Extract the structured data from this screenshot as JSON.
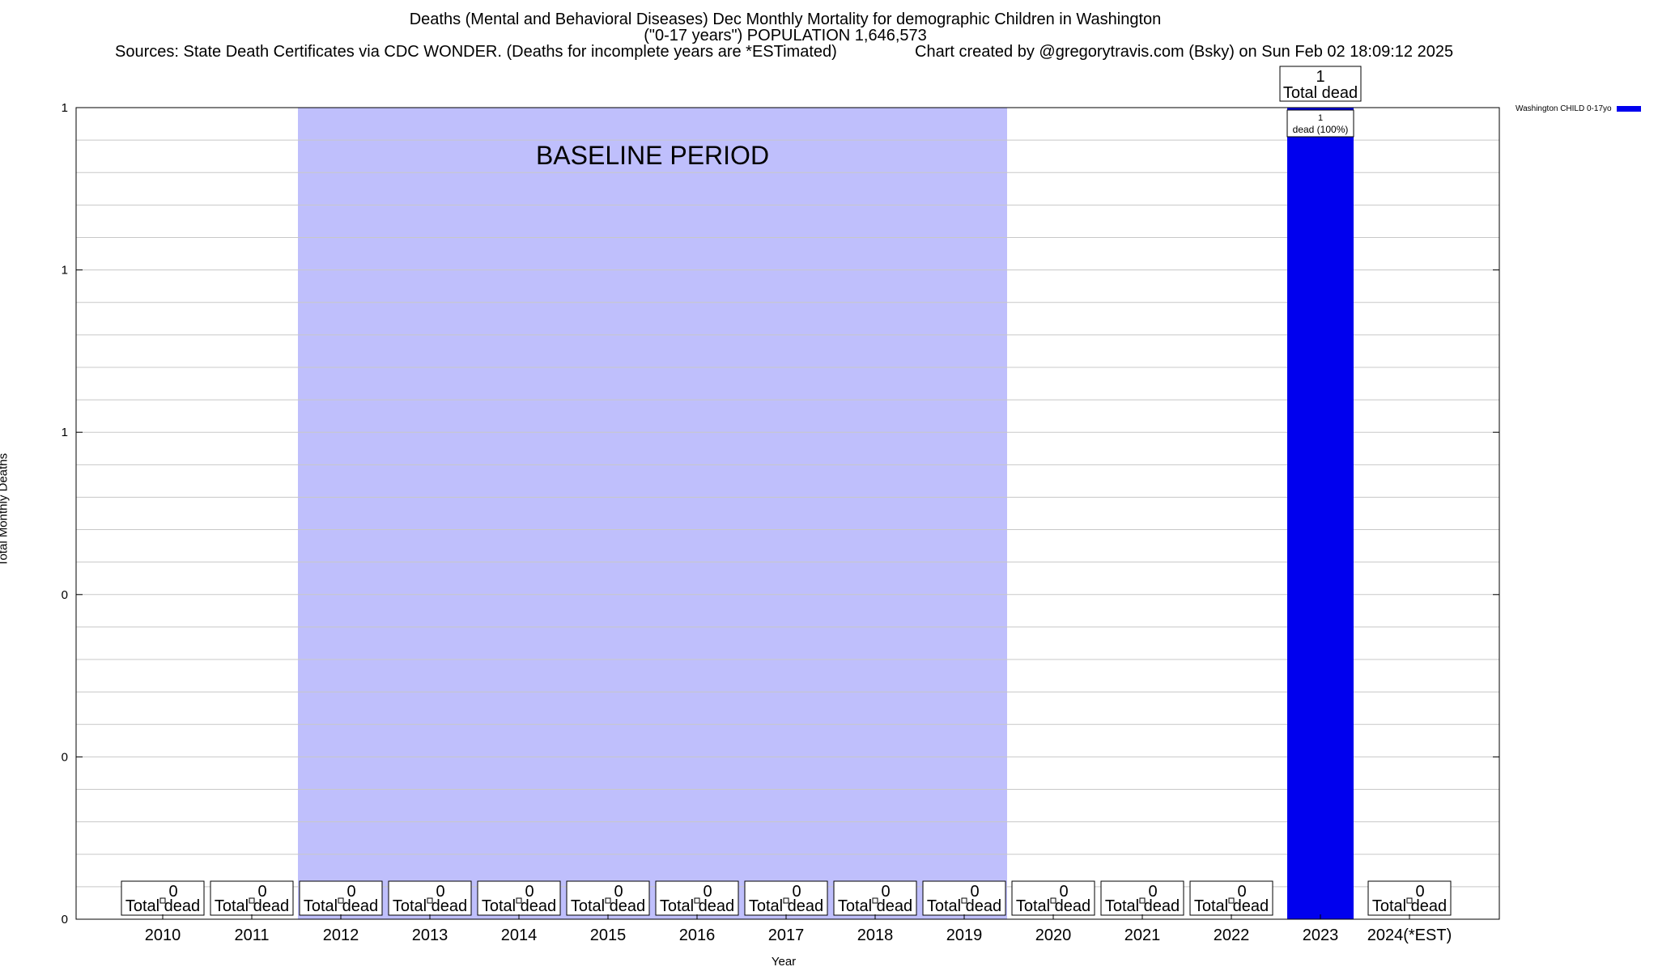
{
  "header": {
    "title_line1": "Deaths (Mental and Behavioral Diseases) Dec Monthly Mortality for demographic Children in Washington",
    "title_line2": "(\"0-17 years\") POPULATION 1,646,573",
    "sources": "Sources: State Death Certificates via CDC WONDER. (Deaths for incomplete years are *ESTimated)",
    "credit": "Chart created by @gregorytravis.com (Bsky) on Sun Feb 02 18:09:12 2025"
  },
  "chart_data": {
    "type": "bar",
    "categories": [
      "2010",
      "2011",
      "2012",
      "2013",
      "2014",
      "2015",
      "2016",
      "2017",
      "2018",
      "2019",
      "2020",
      "2021",
      "2022",
      "2023",
      "2024(*EST)"
    ],
    "series": [
      {
        "name": "Washington CHILD 0-17yo",
        "color": "#0000ee",
        "values": [
          0,
          0,
          0,
          0,
          0,
          0,
          0,
          0,
          0,
          0,
          0,
          0,
          0,
          1,
          0
        ]
      }
    ],
    "bar_label_text": "Total dead",
    "inner_label_value": "1",
    "inner_label_text": "dead (100%)",
    "xlabel": "Year",
    "ylabel": "Total Monthly Deaths",
    "ylim": [
      0,
      1
    ],
    "yticks": [
      0,
      0.2,
      0.4,
      0.6,
      0.8,
      1
    ],
    "ytick_labels": [
      "0",
      "0",
      "0",
      "1",
      "1",
      "1"
    ],
    "grid": true,
    "baseline": {
      "label": "BASELINE PERIOD",
      "start": "2012",
      "end": "2019",
      "color": "#bfbffc"
    },
    "legend_position": "top-right, outside plot"
  }
}
